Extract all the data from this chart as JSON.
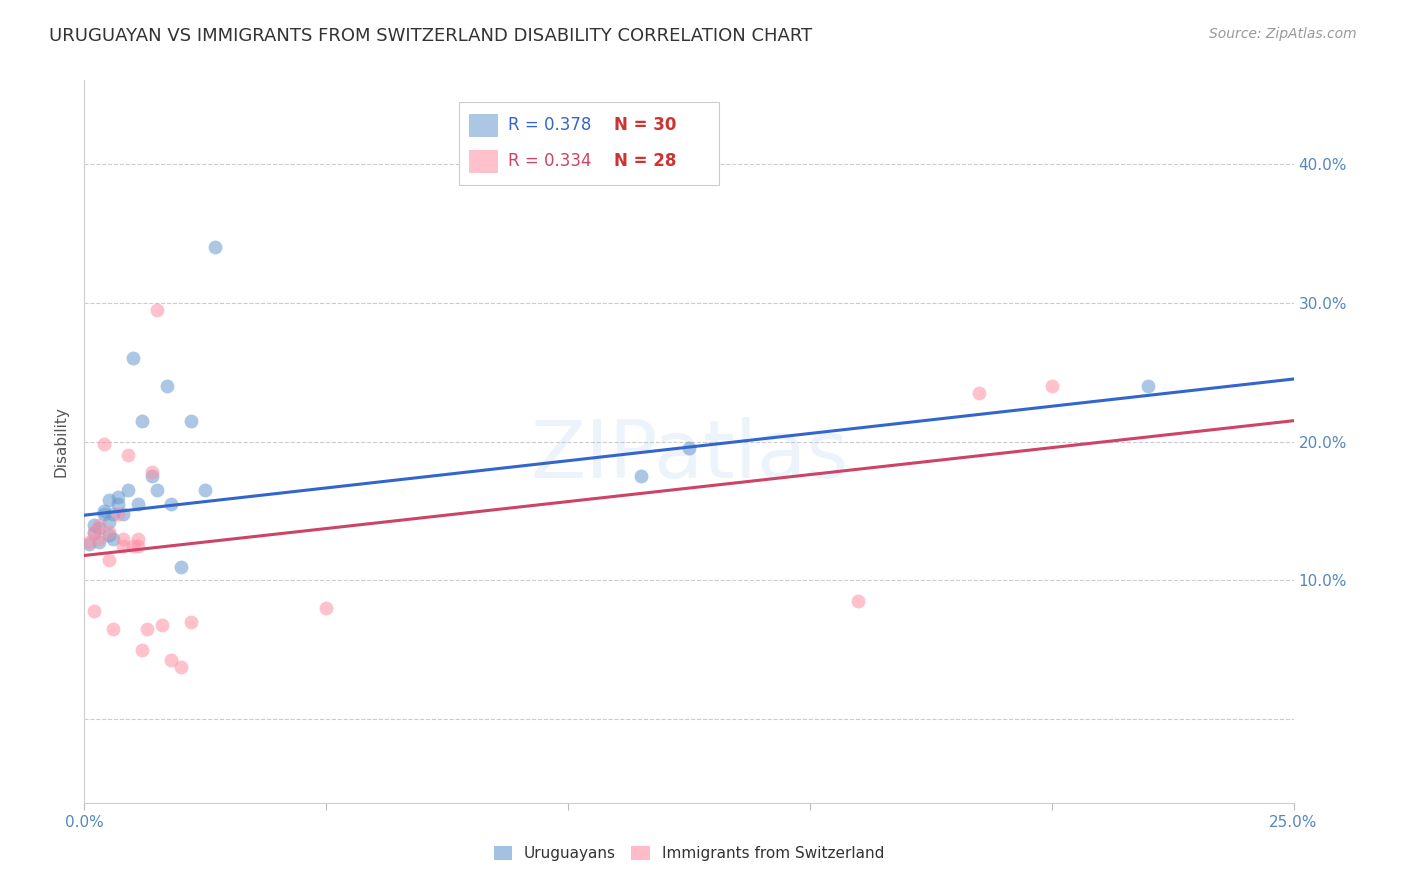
{
  "title": "URUGUAYAN VS IMMIGRANTS FROM SWITZERLAND DISABILITY CORRELATION CHART",
  "source": "Source: ZipAtlas.com",
  "ylabel": "Disability",
  "watermark": "ZIPatlas",
  "xlim": [
    0.0,
    0.25
  ],
  "ylim": [
    -0.06,
    0.46
  ],
  "xticks": [
    0.0,
    0.05,
    0.1,
    0.15,
    0.2,
    0.25
  ],
  "yticks": [
    0.0,
    0.1,
    0.2,
    0.3,
    0.4
  ],
  "blue_R": "R = 0.378",
  "blue_N": "N = 30",
  "pink_R": "R = 0.334",
  "pink_N": "N = 28",
  "blue_points_x": [
    0.001,
    0.002,
    0.002,
    0.003,
    0.003,
    0.004,
    0.004,
    0.005,
    0.005,
    0.005,
    0.006,
    0.006,
    0.007,
    0.007,
    0.008,
    0.009,
    0.01,
    0.011,
    0.012,
    0.014,
    0.015,
    0.017,
    0.018,
    0.02,
    0.022,
    0.025,
    0.027,
    0.115,
    0.125,
    0.22
  ],
  "blue_points_y": [
    0.126,
    0.14,
    0.134,
    0.128,
    0.138,
    0.15,
    0.148,
    0.133,
    0.142,
    0.158,
    0.148,
    0.13,
    0.16,
    0.155,
    0.148,
    0.165,
    0.26,
    0.155,
    0.215,
    0.175,
    0.165,
    0.24,
    0.155,
    0.11,
    0.215,
    0.165,
    0.34,
    0.175,
    0.195,
    0.24
  ],
  "pink_points_x": [
    0.001,
    0.002,
    0.002,
    0.003,
    0.003,
    0.004,
    0.005,
    0.005,
    0.006,
    0.007,
    0.008,
    0.008,
    0.009,
    0.01,
    0.011,
    0.011,
    0.012,
    0.013,
    0.014,
    0.015,
    0.016,
    0.018,
    0.02,
    0.022,
    0.05,
    0.16,
    0.185,
    0.2
  ],
  "pink_points_y": [
    0.128,
    0.135,
    0.078,
    0.13,
    0.14,
    0.198,
    0.135,
    0.115,
    0.065,
    0.148,
    0.125,
    0.13,
    0.19,
    0.125,
    0.13,
    0.125,
    0.05,
    0.065,
    0.178,
    0.295,
    0.068,
    0.043,
    0.038,
    0.07,
    0.08,
    0.085,
    0.235,
    0.24
  ],
  "blue_line_x": [
    0.0,
    0.25
  ],
  "blue_line_y": [
    0.147,
    0.245
  ],
  "pink_line_x": [
    0.0,
    0.25
  ],
  "pink_line_y": [
    0.118,
    0.215
  ],
  "blue_color": "#6699CC",
  "pink_color": "#FF8FA3",
  "blue_line_color": "#3366CC",
  "pink_line_color": "#CC4466",
  "grid_color": "#CCCCCC",
  "title_color": "#333333",
  "axis_label_color": "#5588BB",
  "legend_R_blue_color": "#3366CC",
  "legend_R_pink_color": "#CC4466",
  "legend_N_color": "#CC3333"
}
